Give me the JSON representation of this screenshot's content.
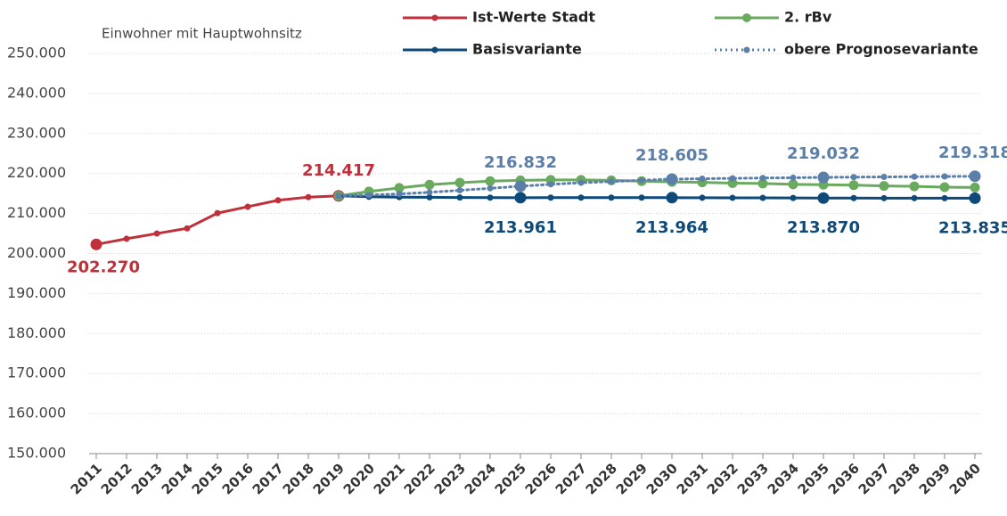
{
  "chart_data": {
    "type": "line",
    "y_label": "Einwohner mit Hauptwohnsitz",
    "categories": [
      "2011",
      "2012",
      "2013",
      "2014",
      "2015",
      "2016",
      "2017",
      "2018",
      "2019",
      "2020",
      "2021",
      "2022",
      "2023",
      "2024",
      "2025",
      "2026",
      "2027",
      "2028",
      "2029",
      "2030",
      "2031",
      "2032",
      "2033",
      "2034",
      "2035",
      "2036",
      "2037",
      "2038",
      "2039",
      "2040"
    ],
    "ylim": [
      150000,
      250000
    ],
    "yticks": [
      {
        "value": 150000,
        "label": "150.000"
      },
      {
        "value": 160000,
        "label": "160.000"
      },
      {
        "value": 170000,
        "label": "170.000"
      },
      {
        "value": 180000,
        "label": "180.000"
      },
      {
        "value": 190000,
        "label": "190.000"
      },
      {
        "value": 200000,
        "label": "200.000"
      },
      {
        "value": 210000,
        "label": "210.000"
      },
      {
        "value": 220000,
        "label": "220.000"
      },
      {
        "value": 230000,
        "label": "230.000"
      },
      {
        "value": 240000,
        "label": "240.000"
      },
      {
        "value": 250000,
        "label": "250.000"
      }
    ],
    "grid": true,
    "legend": "top",
    "series": [
      {
        "name": "Ist-Werte Stadt",
        "color": "#c0303a",
        "style": "solid",
        "values": [
          202270,
          203700,
          205000,
          206300,
          210100,
          211700,
          213300,
          214100,
          214417,
          null,
          null,
          null,
          null,
          null,
          null,
          null,
          null,
          null,
          null,
          null,
          null,
          null,
          null,
          null,
          null,
          null,
          null,
          null,
          null,
          null
        ],
        "value_labels": [
          "202.270",
          null,
          null,
          null,
          null,
          null,
          null,
          null,
          "214.417",
          null,
          null,
          null,
          null,
          null,
          null,
          null,
          null,
          null,
          null,
          null,
          null,
          null,
          null,
          null,
          null,
          null,
          null,
          null,
          null,
          null
        ]
      },
      {
        "name": "2. rBv",
        "color": "#6aaa5e",
        "style": "solid",
        "values": [
          null,
          null,
          null,
          null,
          null,
          null,
          null,
          null,
          214417,
          215500,
          216400,
          217200,
          217700,
          218100,
          218300,
          218400,
          218400,
          218300,
          218100,
          217900,
          217800,
          217600,
          217500,
          217300,
          217200,
          217100,
          216900,
          216800,
          216600,
          216500
        ]
      },
      {
        "name": "Basisvariante",
        "color": "#0d4a7a",
        "style": "solid",
        "values": [
          null,
          null,
          null,
          null,
          null,
          null,
          null,
          null,
          214417,
          214200,
          214100,
          214050,
          214000,
          213980,
          213961,
          213970,
          213980,
          213975,
          213970,
          213964,
          213950,
          213930,
          213910,
          213890,
          213870,
          213860,
          213850,
          213845,
          213840,
          213835
        ],
        "value_labels": [
          null,
          null,
          null,
          null,
          null,
          null,
          null,
          null,
          null,
          null,
          null,
          null,
          null,
          null,
          "213.961",
          null,
          null,
          null,
          null,
          "213.964",
          null,
          null,
          null,
          null,
          "213.870",
          null,
          null,
          null,
          null,
          "213.835"
        ]
      },
      {
        "name": "obere Prognosevariante",
        "color": "#5b7fa8",
        "style": "dotted",
        "values": [
          null,
          null,
          null,
          null,
          null,
          null,
          null,
          null,
          214417,
          214600,
          214900,
          215300,
          215800,
          216300,
          216832,
          217300,
          217700,
          218000,
          218300,
          218605,
          218700,
          218800,
          218880,
          218950,
          219032,
          219100,
          219150,
          219200,
          219260,
          219318
        ],
        "value_labels": [
          null,
          null,
          null,
          null,
          null,
          null,
          null,
          null,
          null,
          null,
          null,
          null,
          null,
          null,
          "216.832",
          null,
          null,
          null,
          null,
          "218.605",
          null,
          null,
          null,
          null,
          "219.032",
          null,
          null,
          null,
          null,
          "219.318"
        ]
      }
    ]
  }
}
